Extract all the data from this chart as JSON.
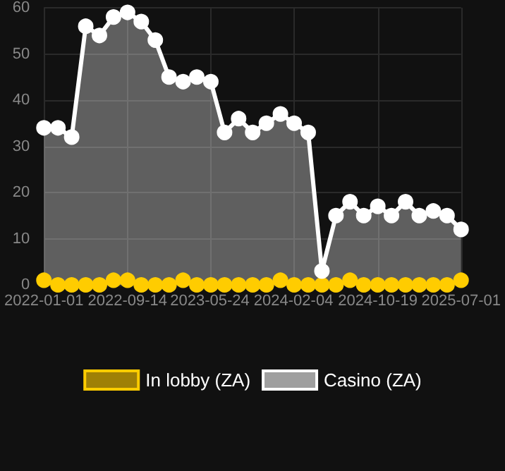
{
  "chart_data": {
    "type": "area",
    "x": [
      "2022-01-01",
      "2022-02-13",
      "2022-03-27",
      "2022-05-09",
      "2022-06-20",
      "2022-08-02",
      "2022-09-14",
      "2022-10-26",
      "2022-12-08",
      "2023-01-19",
      "2023-03-03",
      "2023-04-14",
      "2023-05-27",
      "2023-07-08",
      "2023-08-20",
      "2023-10-02",
      "2023-11-13",
      "2023-12-26",
      "2024-02-06",
      "2024-03-20",
      "2024-05-01",
      "2024-06-13",
      "2024-07-26",
      "2024-09-06",
      "2024-10-19",
      "2024-11-30",
      "2025-01-12",
      "2025-02-23",
      "2025-04-07",
      "2025-05-19",
      "2025-07-01"
    ],
    "series": [
      {
        "name": "In lobby (ZA)",
        "color": "#ffcc00",
        "values": [
          1,
          0,
          0,
          0,
          0,
          1,
          1,
          0,
          0,
          0,
          1,
          0,
          0,
          0,
          0,
          0,
          0,
          1,
          0,
          0,
          0,
          0,
          1,
          0,
          0,
          0,
          0,
          0,
          0,
          0,
          1
        ]
      },
      {
        "name": "Casino (ZA)",
        "color": "#ffffff",
        "values": [
          34,
          34,
          32,
          56,
          54,
          58,
          59,
          57,
          53,
          45,
          44,
          45,
          44,
          33,
          36,
          33,
          35,
          37,
          35,
          33,
          3,
          15,
          18,
          15,
          17,
          15,
          18,
          15,
          16,
          15,
          12
        ]
      }
    ],
    "xlim": [
      "2022-01-01",
      "2025-07-01"
    ],
    "xticks": [
      {
        "value": "2022-01-01",
        "label": "2022-01-01"
      },
      {
        "value": "2022-09-14",
        "label": "2022-09-14"
      },
      {
        "value": "2023-05-24",
        "label": "2023-05-24"
      },
      {
        "value": "2024-02-04",
        "label": "2024-02-04"
      },
      {
        "value": "2024-10-19",
        "label": "2024-10-19"
      },
      {
        "value": "2025-07-01",
        "label": "2025-07-01"
      }
    ],
    "ylim": [
      0,
      60
    ],
    "yticks": [
      0,
      10,
      20,
      30,
      40,
      50,
      60
    ],
    "grid": true,
    "legend": "bottom",
    "marker": "circle",
    "line_style": "solid"
  }
}
